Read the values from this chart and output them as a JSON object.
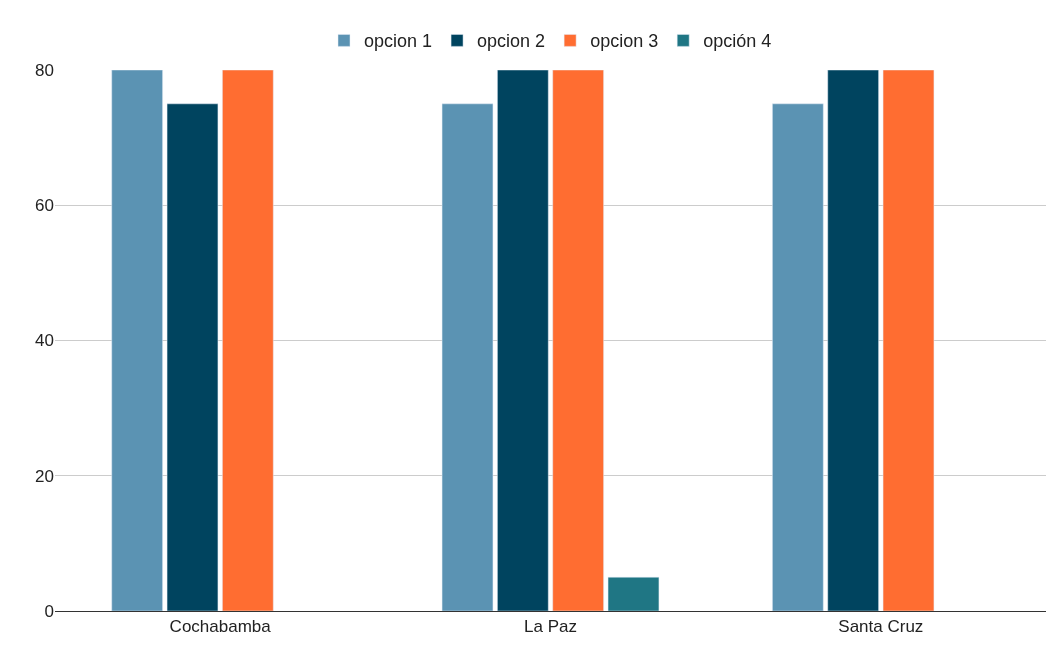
{
  "chart_data": {
    "type": "bar",
    "categories": [
      "Cochabamba",
      "La Paz",
      "Santa Cruz"
    ],
    "series": [
      {
        "name": "opcion 1",
        "color": "#5b93b3",
        "values": [
          80,
          75,
          75
        ]
      },
      {
        "name": "opcion 2",
        "color": "#00445f",
        "values": [
          75,
          80,
          80
        ]
      },
      {
        "name": "opcion 3",
        "color": "#ff6d31",
        "values": [
          80,
          80,
          80
        ]
      },
      {
        "name": "opción 4",
        "color": "#1f7684",
        "values": [
          null,
          5,
          null
        ]
      }
    ],
    "ylim": [
      0,
      80
    ],
    "yticks": [
      0,
      20,
      40,
      60,
      80
    ],
    "grid": "y",
    "legend": "top"
  }
}
